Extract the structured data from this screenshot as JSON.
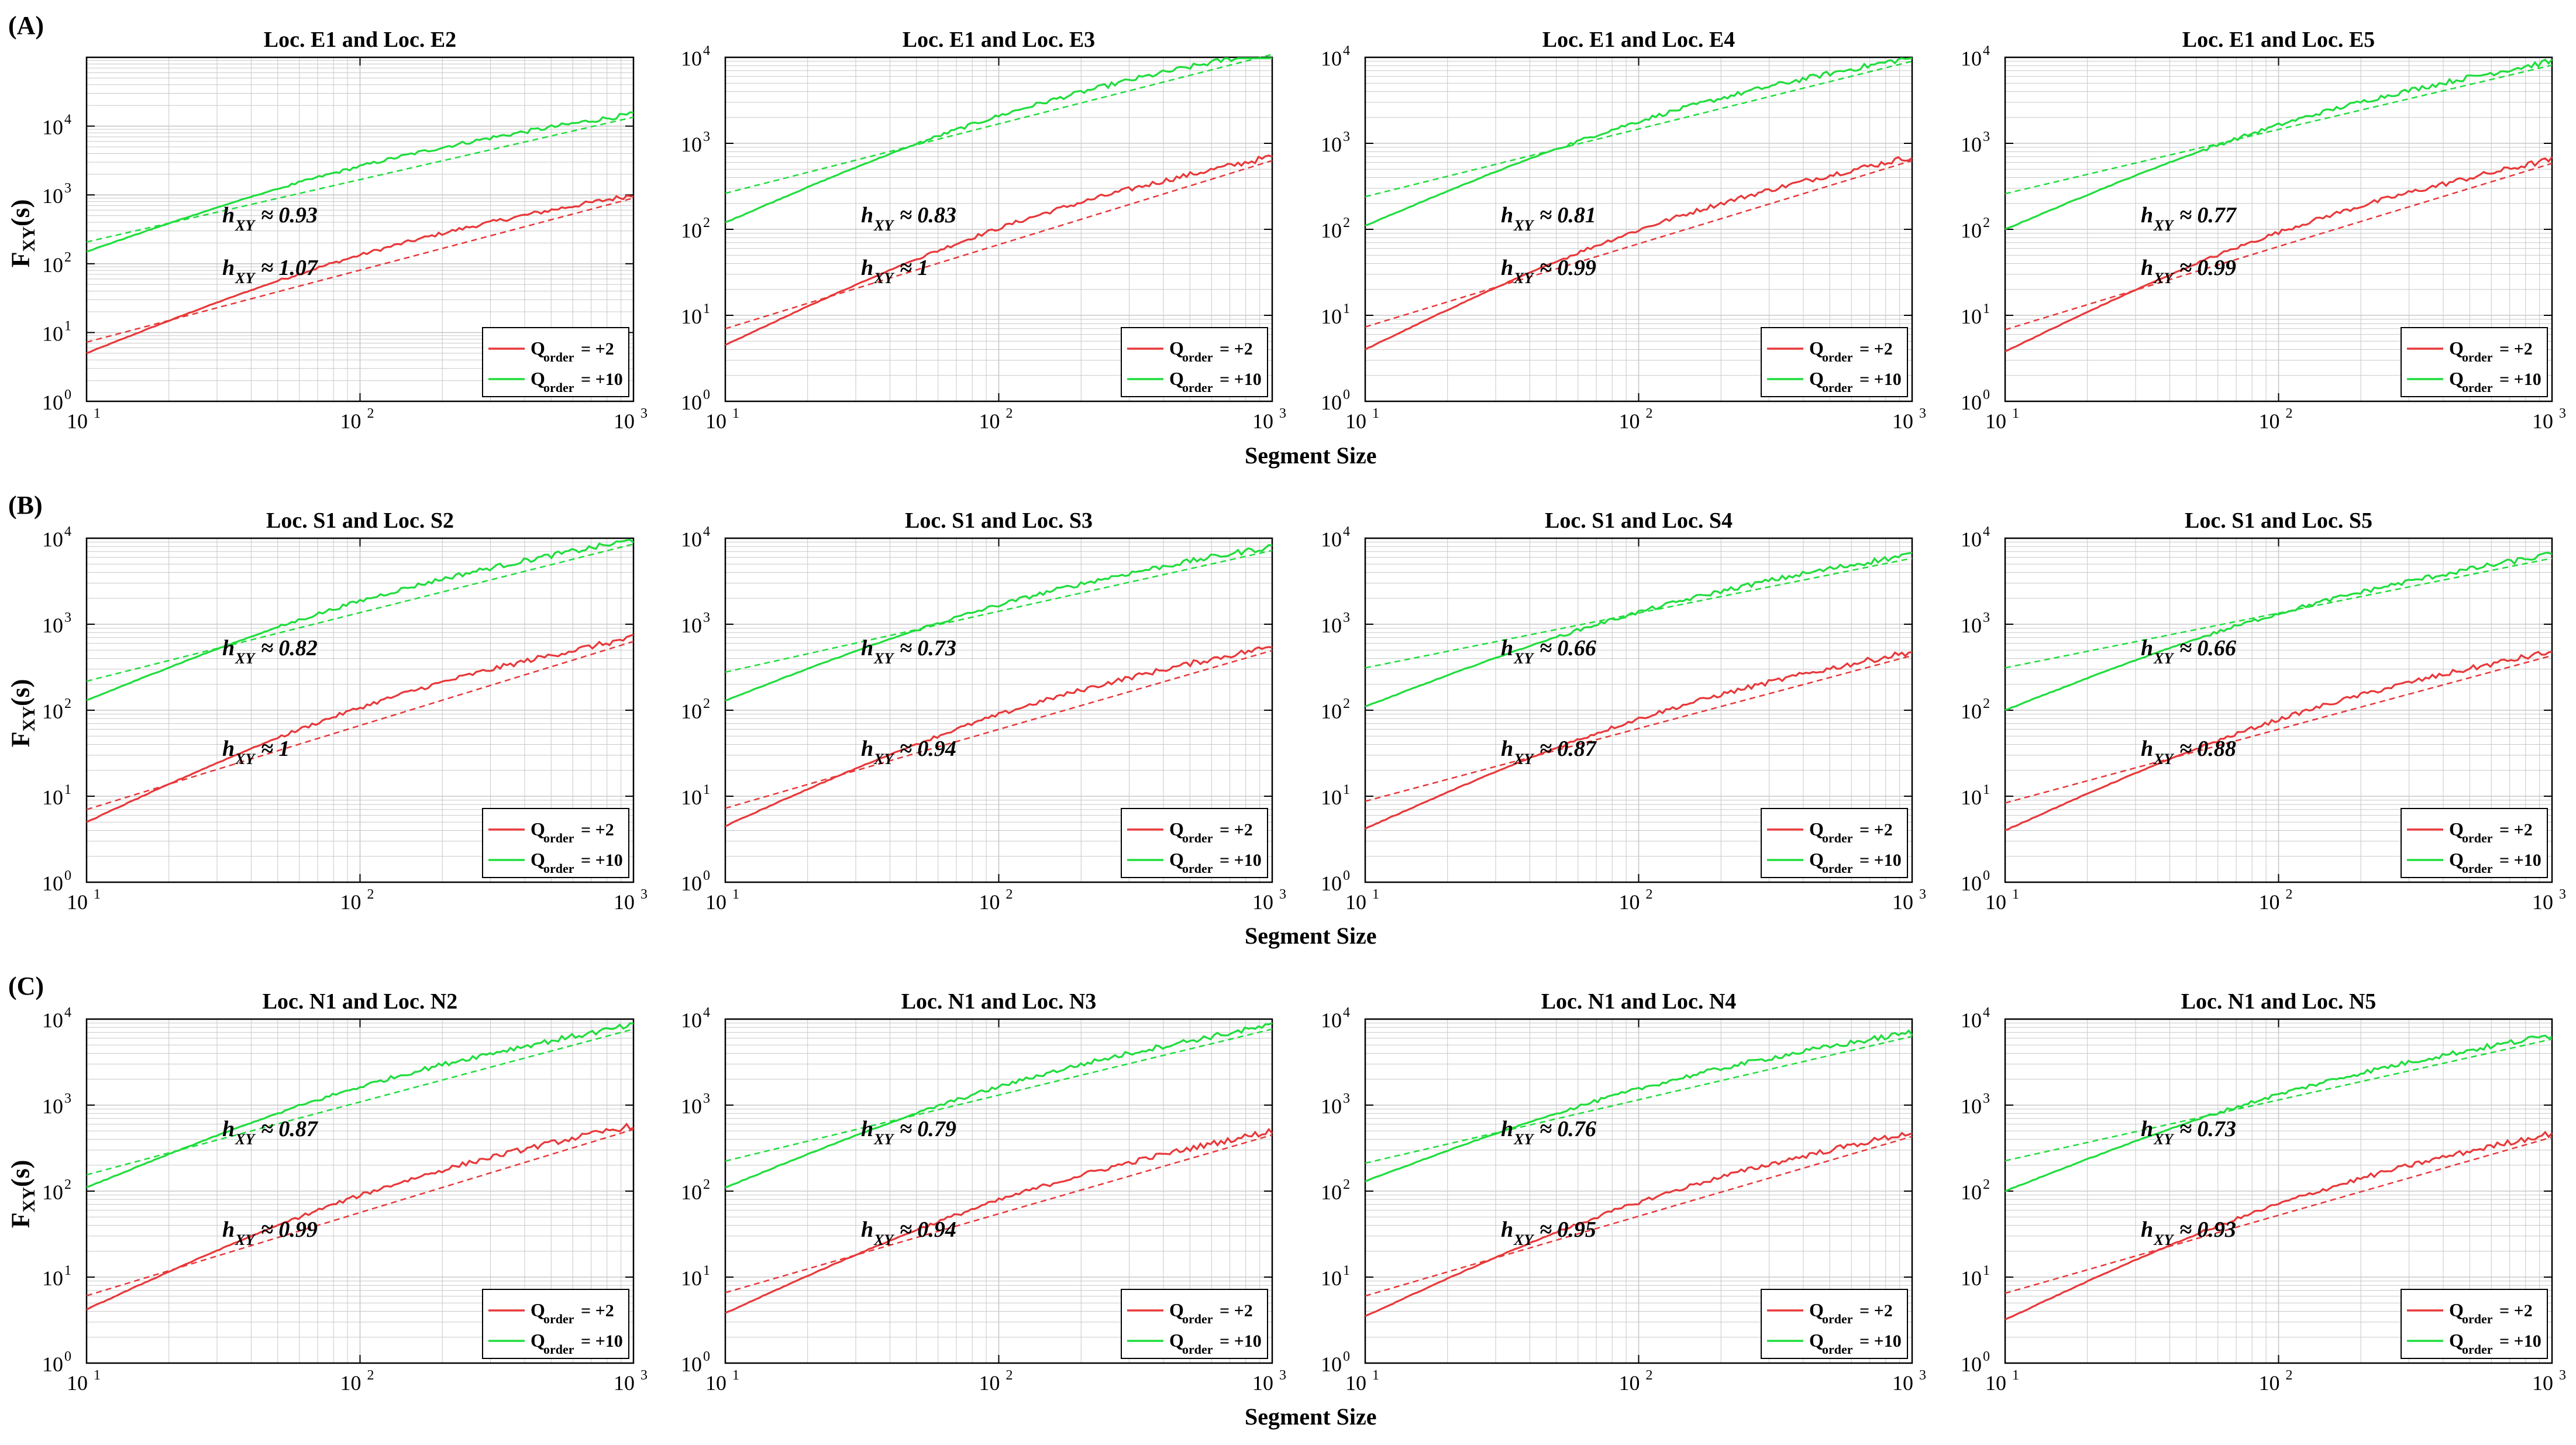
{
  "figure": {
    "x_axis_label": "Segment Size",
    "y_axis_label_main": "F",
    "y_axis_label_sub": "XY",
    "y_axis_label_suffix": "(s)",
    "legend": [
      {
        "q_label": "Q",
        "q_sub": "order",
        "value": "= +2",
        "color": "#e8383a"
      },
      {
        "q_label": "Q",
        "q_sub": "order",
        "value": "= +10",
        "color": "#1fdd3c"
      }
    ],
    "colors": {
      "q2": "#e8383a",
      "q10": "#1fdd3c",
      "axis": "#000000",
      "grid": "#c8c8c8"
    }
  },
  "rows": [
    {
      "tag": "(A)"
    },
    {
      "tag": "(B)"
    },
    {
      "tag": "(C)"
    }
  ],
  "chart_data": [
    {
      "type": "line",
      "row": "(A)",
      "title": "Loc. E1 and Loc. E2",
      "xlim": [
        10,
        1000
      ],
      "ylim": [
        1,
        100000
      ],
      "xscale": "log",
      "yscale": "log",
      "xticks": [
        "10^1",
        "10^2",
        "10^3"
      ],
      "yticks": [
        "10^0",
        "10^1",
        "10^2",
        "10^3",
        "10^4"
      ],
      "series": [
        {
          "name": "Q_order = +2",
          "start": 5,
          "end": 1000,
          "h": 1.07,
          "annotation": "≈ 1.07"
        },
        {
          "name": "Q_order = +10",
          "start": 150,
          "end": 15000,
          "h": 0.93,
          "annotation": "≈ 0.93"
        }
      ]
    },
    {
      "type": "line",
      "row": "(A)",
      "title": "Loc. E1 and Loc. E3",
      "xlim": [
        10,
        1000
      ],
      "ylim": [
        1,
        10000
      ],
      "xscale": "log",
      "yscale": "log",
      "xticks": [
        "10^1",
        "10^2",
        "10^3"
      ],
      "yticks": [
        "10^0",
        "10^1",
        "10^2",
        "10^3",
        "10^4"
      ],
      "series": [
        {
          "name": "Q_order = +2",
          "start": 4.5,
          "end": 700,
          "h": 1,
          "annotation": "≈ 1"
        },
        {
          "name": "Q_order = +10",
          "start": 120,
          "end": 12000,
          "h": 0.83,
          "annotation": "≈ 0.83"
        }
      ]
    },
    {
      "type": "line",
      "row": "(A)",
      "title": "Loc. E1 and Loc. E4",
      "xlim": [
        10,
        1000
      ],
      "ylim": [
        1,
        10000
      ],
      "xscale": "log",
      "yscale": "log",
      "xticks": [
        "10^1",
        "10^2",
        "10^3"
      ],
      "yticks": [
        "10^0",
        "10^1",
        "10^2",
        "10^3",
        "10^4"
      ],
      "series": [
        {
          "name": "Q_order = +2",
          "start": 4,
          "end": 700,
          "h": 0.99,
          "annotation": "≈ 0.99"
        },
        {
          "name": "Q_order = +10",
          "start": 110,
          "end": 10000,
          "h": 0.81,
          "annotation": "≈ 0.81"
        }
      ]
    },
    {
      "type": "line",
      "row": "(A)",
      "title": "Loc. E1 and Loc. E5",
      "xlim": [
        10,
        1000
      ],
      "ylim": [
        1,
        10000
      ],
      "xscale": "log",
      "yscale": "log",
      "xticks": [
        "10^1",
        "10^2",
        "10^3"
      ],
      "yticks": [
        "10^0",
        "10^1",
        "10^2",
        "10^3",
        "10^4"
      ],
      "series": [
        {
          "name": "Q_order = +2",
          "start": 3.8,
          "end": 650,
          "h": 0.99,
          "annotation": "≈ 0.99"
        },
        {
          "name": "Q_order = +10",
          "start": 100,
          "end": 9000,
          "h": 0.77,
          "annotation": "≈ 0.77"
        }
      ]
    },
    {
      "type": "line",
      "row": "(B)",
      "title": "Loc. S1 and Loc. S2",
      "xlim": [
        10,
        1000
      ],
      "ylim": [
        1,
        10000
      ],
      "xscale": "log",
      "yscale": "log",
      "xticks": [
        "10^1",
        "10^2",
        "10^3"
      ],
      "yticks": [
        "10^0",
        "10^1",
        "10^2",
        "10^3",
        "10^4"
      ],
      "series": [
        {
          "name": "Q_order = +2",
          "start": 5,
          "end": 700,
          "h": 1,
          "annotation": "≈ 1"
        },
        {
          "name": "Q_order = +10",
          "start": 130,
          "end": 9500,
          "h": 0.82,
          "annotation": "≈ 0.82"
        }
      ]
    },
    {
      "type": "line",
      "row": "(B)",
      "title": "Loc. S1 and Loc. S3",
      "xlim": [
        10,
        1000
      ],
      "ylim": [
        1,
        10000
      ],
      "xscale": "log",
      "yscale": "log",
      "xticks": [
        "10^1",
        "10^2",
        "10^3"
      ],
      "yticks": [
        "10^0",
        "10^1",
        "10^2",
        "10^3",
        "10^4"
      ],
      "series": [
        {
          "name": "Q_order = +2",
          "start": 4.5,
          "end": 550,
          "h": 0.94,
          "annotation": "≈ 0.94"
        },
        {
          "name": "Q_order = +10",
          "start": 130,
          "end": 8000,
          "h": 0.73,
          "annotation": "≈ 0.73"
        }
      ]
    },
    {
      "type": "line",
      "row": "(B)",
      "title": "Loc. S1 and Loc. S4",
      "xlim": [
        10,
        1000
      ],
      "ylim": [
        1,
        10000
      ],
      "xscale": "log",
      "yscale": "log",
      "xticks": [
        "10^1",
        "10^2",
        "10^3"
      ],
      "yticks": [
        "10^0",
        "10^1",
        "10^2",
        "10^3",
        "10^4"
      ],
      "series": [
        {
          "name": "Q_order = +2",
          "start": 4.2,
          "end": 480,
          "h": 0.87,
          "annotation": "≈ 0.87"
        },
        {
          "name": "Q_order = +10",
          "start": 110,
          "end": 6500,
          "h": 0.66,
          "annotation": "≈ 0.66"
        }
      ]
    },
    {
      "type": "line",
      "row": "(B)",
      "title": "Loc. S1 and Loc. S5",
      "xlim": [
        10,
        1000
      ],
      "ylim": [
        1,
        10000
      ],
      "xscale": "log",
      "yscale": "log",
      "xticks": [
        "10^1",
        "10^2",
        "10^3"
      ],
      "yticks": [
        "10^0",
        "10^1",
        "10^2",
        "10^3",
        "10^4"
      ],
      "series": [
        {
          "name": "Q_order = +2",
          "start": 4,
          "end": 480,
          "h": 0.88,
          "annotation": "≈ 0.88"
        },
        {
          "name": "Q_order = +10",
          "start": 100,
          "end": 6500,
          "h": 0.66,
          "annotation": "≈ 0.66"
        }
      ]
    },
    {
      "type": "line",
      "row": "(C)",
      "title": "Loc. N1 and Loc. N2",
      "xlim": [
        10,
        1000
      ],
      "ylim": [
        1,
        10000
      ],
      "xscale": "log",
      "yscale": "log",
      "xticks": [
        "10^1",
        "10^2",
        "10^3"
      ],
      "yticks": [
        "10^0",
        "10^1",
        "10^2",
        "10^3",
        "10^4"
      ],
      "series": [
        {
          "name": "Q_order = +2",
          "start": 4.2,
          "end": 580,
          "h": 0.99,
          "annotation": "≈ 0.99"
        },
        {
          "name": "Q_order = +10",
          "start": 110,
          "end": 8500,
          "h": 0.87,
          "annotation": "≈ 0.87"
        }
      ]
    },
    {
      "type": "line",
      "row": "(C)",
      "title": "Loc. N1 and Loc. N3",
      "xlim": [
        10,
        1000
      ],
      "ylim": [
        1,
        10000
      ],
      "xscale": "log",
      "yscale": "log",
      "xticks": [
        "10^1",
        "10^2",
        "10^3"
      ],
      "yticks": [
        "10^0",
        "10^1",
        "10^2",
        "10^3",
        "10^4"
      ],
      "series": [
        {
          "name": "Q_order = +2",
          "start": 3.8,
          "end": 500,
          "h": 0.94,
          "annotation": "≈ 0.94"
        },
        {
          "name": "Q_order = +10",
          "start": 110,
          "end": 8500,
          "h": 0.79,
          "annotation": "≈ 0.79"
        }
      ]
    },
    {
      "type": "line",
      "row": "(C)",
      "title": "Loc. N1 and Loc. N4",
      "xlim": [
        10,
        1000
      ],
      "ylim": [
        1,
        10000
      ],
      "xscale": "log",
      "yscale": "log",
      "xticks": [
        "10^1",
        "10^2",
        "10^3"
      ],
      "yticks": [
        "10^0",
        "10^1",
        "10^2",
        "10^3",
        "10^4"
      ],
      "series": [
        {
          "name": "Q_order = +2",
          "start": 3.5,
          "end": 480,
          "h": 0.95,
          "annotation": "≈ 0.95"
        },
        {
          "name": "Q_order = +10",
          "start": 130,
          "end": 7000,
          "h": 0.76,
          "annotation": "≈ 0.76"
        }
      ]
    },
    {
      "type": "line",
      "row": "(C)",
      "title": "Loc. N1 and Loc. N5",
      "xlim": [
        10,
        1000
      ],
      "ylim": [
        1,
        10000
      ],
      "xscale": "log",
      "yscale": "log",
      "xticks": [
        "10^1",
        "10^2",
        "10^3"
      ],
      "yticks": [
        "10^0",
        "10^1",
        "10^2",
        "10^3",
        "10^4"
      ],
      "series": [
        {
          "name": "Q_order = +2",
          "start": 3.2,
          "end": 470,
          "h": 0.93,
          "annotation": "≈ 0.93"
        },
        {
          "name": "Q_order = +10",
          "start": 100,
          "end": 6500,
          "h": 0.73,
          "annotation": "≈ 0.73"
        }
      ]
    }
  ]
}
